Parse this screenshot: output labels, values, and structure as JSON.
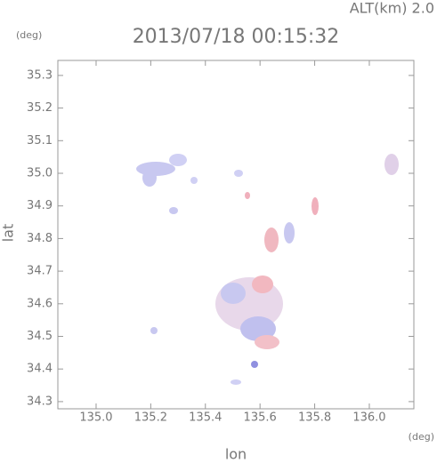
{
  "chart_data": {
    "type": "map",
    "title": "2013/07/18 00:15:32",
    "subtitle": "ALT(km) 2.0",
    "y_unit": "(deg)",
    "x_unit": "(deg)",
    "x_label": "lon",
    "y_label": "lat",
    "xlim": [
      134.86,
      136.163
    ],
    "ylim": [
      34.278,
      35.346
    ],
    "xticks": [
      {
        "value": 135,
        "label": "135.0"
      },
      135.2,
      135.4,
      135.6,
      135.8,
      {
        "value": 136,
        "label": "136.0"
      }
    ],
    "yticks": [
      34.3,
      34.4,
      34.5,
      34.6,
      34.7,
      34.8,
      34.9,
      {
        "value": 35,
        "label": "35.0"
      },
      35.1,
      35.2,
      35.3
    ]
  }
}
